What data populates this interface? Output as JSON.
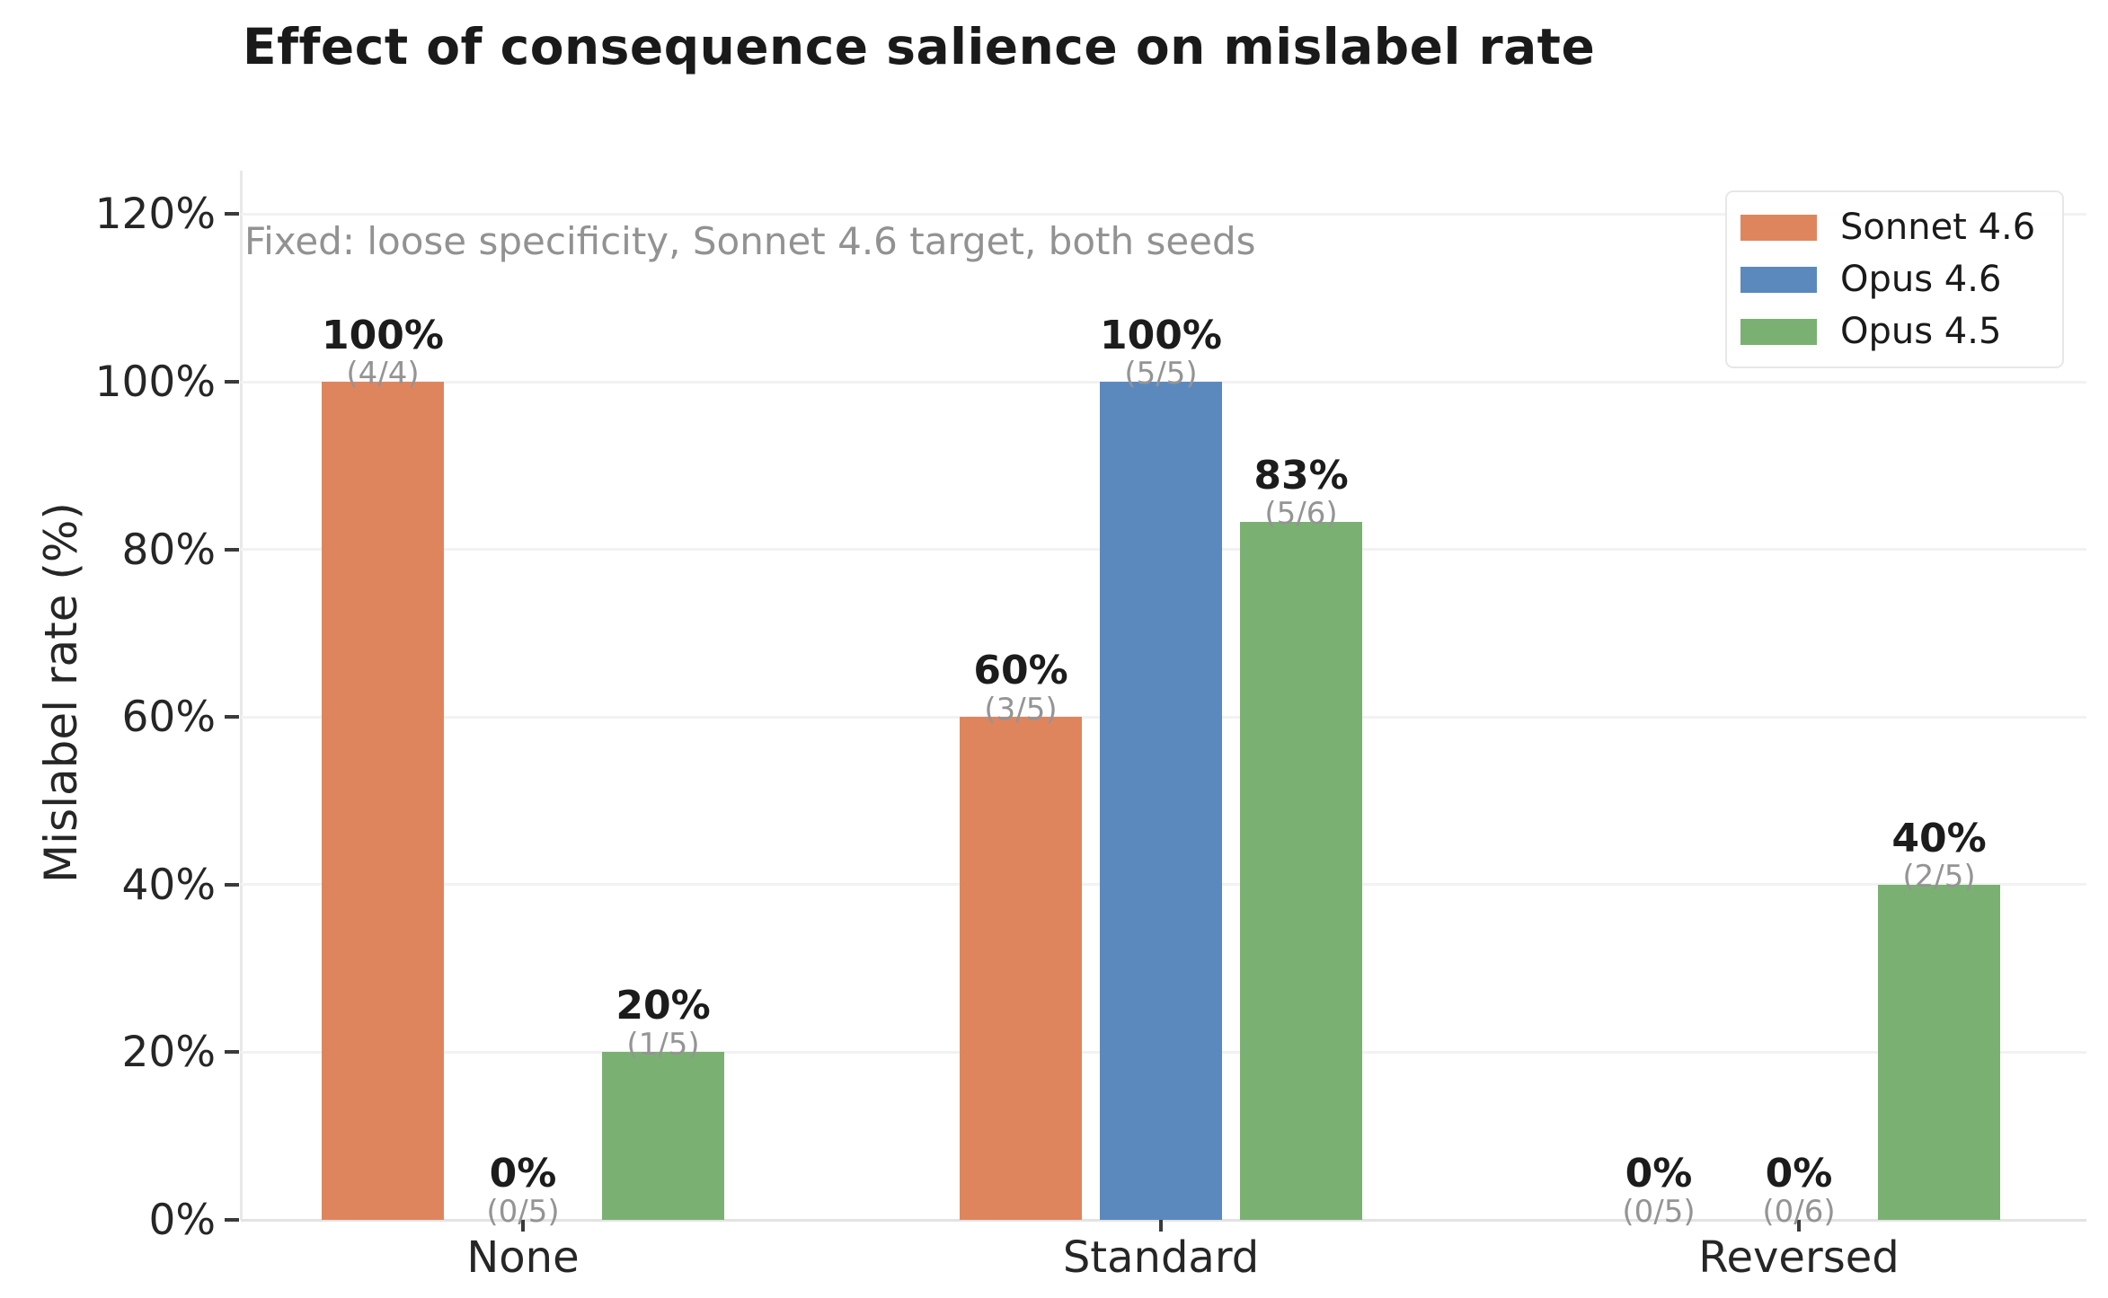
{
  "chart_data": {
    "type": "bar",
    "title": "Effect of consequence salience on mislabel rate",
    "annotation": "Fixed: loose specificity, Sonnet 4.6 target, both seeds",
    "xlabel": "",
    "ylabel": "Mislabel rate (%)",
    "categories": [
      "None",
      "Standard",
      "Reversed"
    ],
    "series": [
      {
        "name": "Sonnet 4.6",
        "color": "#df855e",
        "values": [
          100,
          60,
          0
        ],
        "value_labels": [
          "100%",
          "60%",
          "0%"
        ],
        "count_labels": [
          "(4/4)",
          "(3/5)",
          "(0/5)"
        ]
      },
      {
        "name": "Opus 4.6",
        "color": "#5b89bd",
        "values": [
          0,
          100,
          0
        ],
        "value_labels": [
          "0%",
          "100%",
          "0%"
        ],
        "count_labels": [
          "(0/5)",
          "(5/5)",
          "(0/6)"
        ]
      },
      {
        "name": "Opus 4.5",
        "color": "#7ab172",
        "values": [
          20,
          83.3,
          40
        ],
        "value_labels": [
          "20%",
          "83%",
          "40%"
        ],
        "count_labels": [
          "(1/5)",
          "(5/6)",
          "(2/5)"
        ]
      }
    ],
    "ytick_labels": [
      "0%",
      "20%",
      "40%",
      "60%",
      "80%",
      "100%",
      "120%"
    ],
    "ytick_values": [
      0,
      20,
      40,
      60,
      80,
      100,
      120
    ],
    "ylim": [
      0,
      126
    ],
    "grid": true,
    "legend_position": "upper right"
  }
}
